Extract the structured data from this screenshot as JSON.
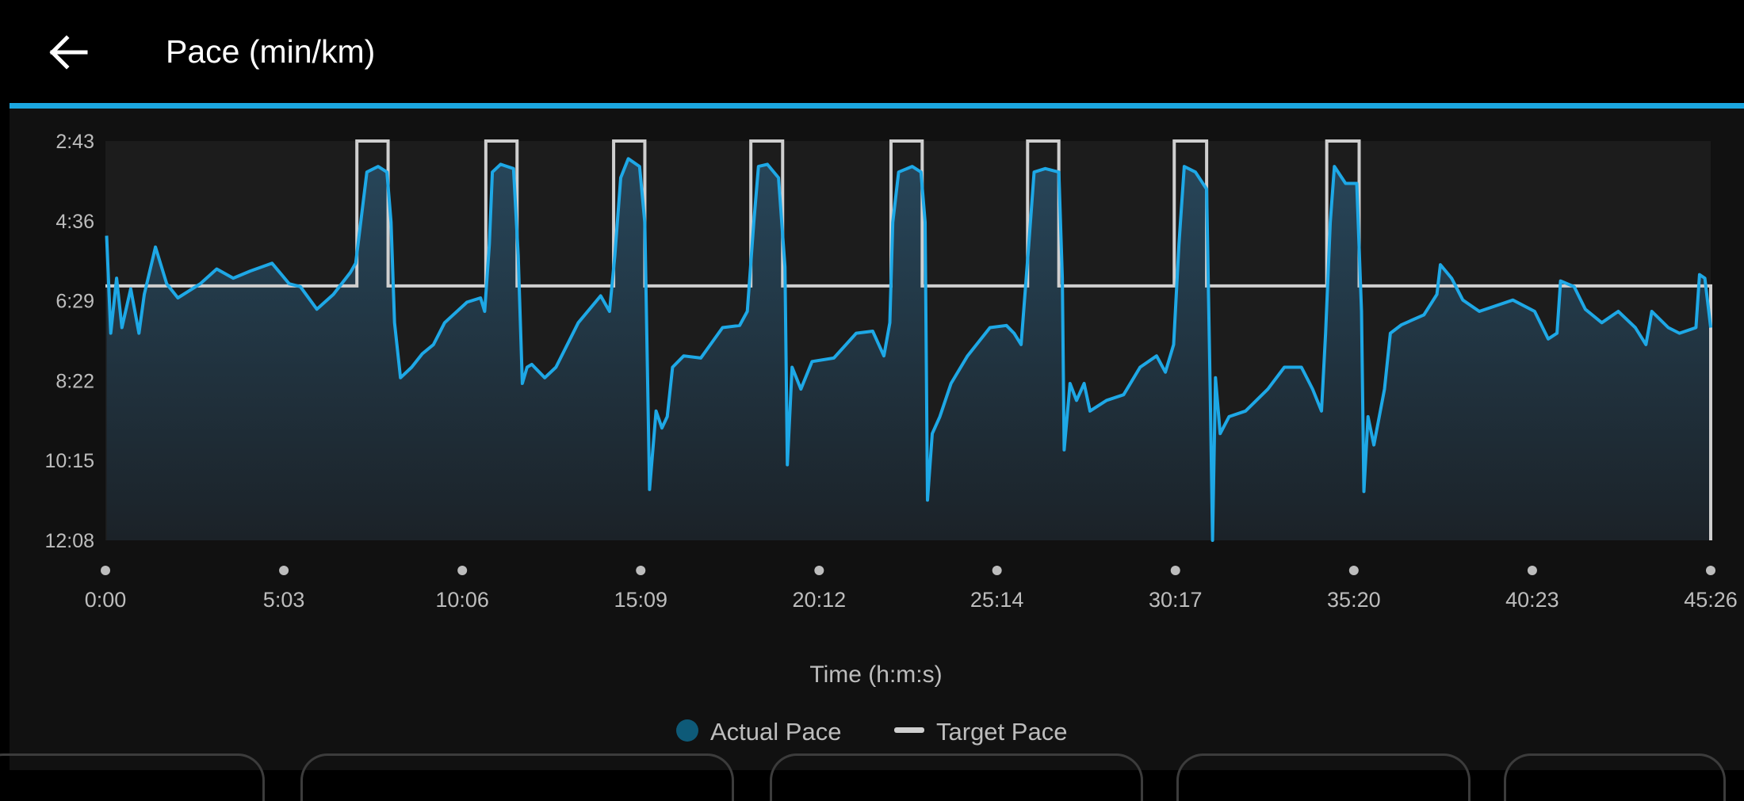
{
  "header": {
    "title": "Pace (min/km)",
    "back_icon": "arrow-left-icon"
  },
  "colors": {
    "accent": "#1ba6e0",
    "actual_line": "#1ea8e6",
    "actual_legend": "#0e5a78",
    "target_line": "#cfcfcf",
    "background": "#111111"
  },
  "chart_data": {
    "type": "area",
    "title": "Pace (min/km)",
    "xlabel": "Time (h:m:s)",
    "ylabel": "",
    "xlim": [
      "0:00",
      "45:26"
    ],
    "ylim": [
      "2:43",
      "12:08"
    ],
    "y_inverted": true,
    "grid": false,
    "legend_placement": "bottom",
    "x_ticks": [
      "0:00",
      "5:03",
      "10:06",
      "15:09",
      "20:12",
      "25:14",
      "30:17",
      "35:20",
      "40:23",
      "45:26"
    ],
    "y_ticks": [
      "2:43",
      "4:36",
      "6:29",
      "8:22",
      "10:15",
      "12:08"
    ],
    "series": [
      {
        "name": "Actual Pace",
        "type": "area",
        "points": [
          [
            "0:02",
            "4:57"
          ],
          [
            "0:09",
            "7:15"
          ],
          [
            "0:19",
            "5:57"
          ],
          [
            "0:28",
            "7:07"
          ],
          [
            "0:43",
            "6:12"
          ],
          [
            "0:57",
            "7:15"
          ],
          [
            "1:06",
            "6:20"
          ],
          [
            "1:25",
            "5:13"
          ],
          [
            "1:44",
            "6:05"
          ],
          [
            "2:03",
            "6:25"
          ],
          [
            "2:41",
            "6:05"
          ],
          [
            "3:09",
            "5:44"
          ],
          [
            "3:37",
            "5:57"
          ],
          [
            "4:06",
            "5:47"
          ],
          [
            "4:43",
            "5:36"
          ],
          [
            "5:12",
            "6:05"
          ],
          [
            "5:31",
            "6:09"
          ],
          [
            "5:59",
            "6:41"
          ],
          [
            "6:27",
            "6:20"
          ],
          [
            "6:56",
            "5:49"
          ],
          [
            "7:05",
            "5:36"
          ],
          [
            "7:24",
            "3:27"
          ],
          [
            "7:43",
            "3:19"
          ],
          [
            "7:58",
            "3:27"
          ],
          [
            "8:05",
            "4:38"
          ],
          [
            "8:11",
            "7:00"
          ],
          [
            "8:21",
            "8:18"
          ],
          [
            "8:40",
            "8:03"
          ],
          [
            "8:58",
            "7:44"
          ],
          [
            "9:17",
            "7:31"
          ],
          [
            "9:36",
            "7:00"
          ],
          [
            "10:14",
            "6:31"
          ],
          [
            "10:37",
            "6:25"
          ],
          [
            "10:44",
            "6:44"
          ],
          [
            "10:52",
            "5:09"
          ],
          [
            "10:57",
            "3:27"
          ],
          [
            "11:11",
            "3:16"
          ],
          [
            "11:33",
            "3:22"
          ],
          [
            "11:41",
            "5:25"
          ],
          [
            "11:48",
            "8:26"
          ],
          [
            "11:56",
            "8:03"
          ],
          [
            "12:04",
            "7:59"
          ],
          [
            "12:26",
            "8:18"
          ],
          [
            "12:45",
            "8:03"
          ],
          [
            "13:23",
            "7:00"
          ],
          [
            "14:01",
            "6:22"
          ],
          [
            "14:16",
            "6:44"
          ],
          [
            "14:25",
            "5:25"
          ],
          [
            "14:35",
            "3:35"
          ],
          [
            "14:48",
            "3:08"
          ],
          [
            "15:07",
            "3:19"
          ],
          [
            "15:16",
            "4:38"
          ],
          [
            "15:24",
            "10:56"
          ],
          [
            "15:35",
            "9:05"
          ],
          [
            "15:45",
            "9:29"
          ],
          [
            "15:54",
            "9:13"
          ],
          [
            "16:03",
            "8:03"
          ],
          [
            "16:22",
            "7:47"
          ],
          [
            "16:51",
            "7:50"
          ],
          [
            "17:28",
            "7:07"
          ],
          [
            "17:57",
            "7:04"
          ],
          [
            "18:10",
            "6:44"
          ],
          [
            "18:21",
            "4:38"
          ],
          [
            "18:29",
            "3:19"
          ],
          [
            "18:44",
            "3:16"
          ],
          [
            "19:03",
            "3:35"
          ],
          [
            "19:14",
            "5:41"
          ],
          [
            "19:18",
            "10:21"
          ],
          [
            "19:26",
            "8:03"
          ],
          [
            "19:41",
            "8:34"
          ],
          [
            "20:00",
            "7:55"
          ],
          [
            "20:37",
            "7:50"
          ],
          [
            "21:15",
            "7:15"
          ],
          [
            "21:43",
            "7:12"
          ],
          [
            "22:02",
            "7:47"
          ],
          [
            "22:12",
            "7:00"
          ],
          [
            "22:17",
            "4:38"
          ],
          [
            "22:27",
            "3:27"
          ],
          [
            "22:50",
            "3:19"
          ],
          [
            "23:05",
            "3:27"
          ],
          [
            "23:12",
            "4:38"
          ],
          [
            "23:16",
            "11:11"
          ],
          [
            "23:24",
            "9:37"
          ],
          [
            "23:37",
            "9:13"
          ],
          [
            "23:56",
            "8:26"
          ],
          [
            "24:24",
            "7:47"
          ],
          [
            "25:02",
            "7:07"
          ],
          [
            "25:30",
            "7:04"
          ],
          [
            "25:43",
            "7:15"
          ],
          [
            "25:55",
            "7:31"
          ],
          [
            "26:08",
            "5:09"
          ],
          [
            "26:17",
            "3:27"
          ],
          [
            "26:36",
            "3:22"
          ],
          [
            "26:59",
            "3:27"
          ],
          [
            "27:05",
            "5:57"
          ],
          [
            "27:08",
            "10:00"
          ],
          [
            "27:18",
            "8:26"
          ],
          [
            "27:29",
            "8:50"
          ],
          [
            "27:42",
            "8:26"
          ],
          [
            "27:52",
            "9:05"
          ],
          [
            "28:20",
            "8:50"
          ],
          [
            "28:49",
            "8:42"
          ],
          [
            "29:17",
            "8:03"
          ],
          [
            "29:45",
            "7:47"
          ],
          [
            "30:00",
            "8:10"
          ],
          [
            "30:14",
            "7:31"
          ],
          [
            "30:23",
            "5:09"
          ],
          [
            "30:32",
            "3:19"
          ],
          [
            "30:51",
            "3:27"
          ],
          [
            "31:10",
            "3:51"
          ],
          [
            "31:16",
            "8:34"
          ],
          [
            "31:20",
            "12:08"
          ],
          [
            "31:25",
            "8:18"
          ],
          [
            "31:33",
            "9:37"
          ],
          [
            "31:48",
            "9:13"
          ],
          [
            "32:16",
            "9:05"
          ],
          [
            "32:54",
            "8:34"
          ],
          [
            "33:22",
            "8:03"
          ],
          [
            "33:51",
            "8:03"
          ],
          [
            "34:10",
            "8:34"
          ],
          [
            "34:25",
            "9:05"
          ],
          [
            "34:32",
            "7:15"
          ],
          [
            "34:40",
            "4:38"
          ],
          [
            "34:47",
            "3:19"
          ],
          [
            "35:06",
            "3:43"
          ],
          [
            "35:25",
            "3:43"
          ],
          [
            "35:33",
            "6:44"
          ],
          [
            "35:37",
            "10:59"
          ],
          [
            "35:44",
            "9:13"
          ],
          [
            "35:54",
            "9:53"
          ],
          [
            "36:12",
            "8:34"
          ],
          [
            "36:22",
            "7:15"
          ],
          [
            "36:41",
            "7:03"
          ],
          [
            "37:19",
            "6:49"
          ],
          [
            "37:41",
            "6:20"
          ],
          [
            "37:47",
            "5:38"
          ],
          [
            "38:06",
            "5:57"
          ],
          [
            "38:25",
            "6:28"
          ],
          [
            "38:53",
            "6:44"
          ],
          [
            "39:50",
            "6:28"
          ],
          [
            "40:27",
            "6:44"
          ],
          [
            "40:50",
            "7:23"
          ],
          [
            "41:05",
            "7:15"
          ],
          [
            "41:11",
            "6:01"
          ],
          [
            "41:34",
            "6:09"
          ],
          [
            "41:53",
            "6:41"
          ],
          [
            "42:21",
            "7:00"
          ],
          [
            "42:49",
            "6:44"
          ],
          [
            "43:18",
            "7:07"
          ],
          [
            "43:36",
            "7:31"
          ],
          [
            "43:46",
            "6:44"
          ],
          [
            "44:14",
            "7:07"
          ],
          [
            "44:33",
            "7:15"
          ],
          [
            "45:01",
            "7:07"
          ],
          [
            "45:07",
            "5:52"
          ],
          [
            "45:16",
            "5:57"
          ],
          [
            "45:26",
            "7:07"
          ]
        ]
      },
      {
        "name": "Target Pace",
        "type": "step",
        "base_pace": "6:08",
        "interval_pace": "2:43",
        "intervals": [
          [
            "7:07",
            "8:00"
          ],
          [
            "10:46",
            "11:39"
          ],
          [
            "14:23",
            "15:16"
          ],
          [
            "18:16",
            "19:10"
          ],
          [
            "22:14",
            "23:07"
          ],
          [
            "26:06",
            "26:59"
          ],
          [
            "30:15",
            "31:10"
          ],
          [
            "34:34",
            "35:29"
          ]
        ],
        "end": "45:26"
      }
    ]
  },
  "legend": {
    "actual": "Actual Pace",
    "target": "Target Pace"
  }
}
